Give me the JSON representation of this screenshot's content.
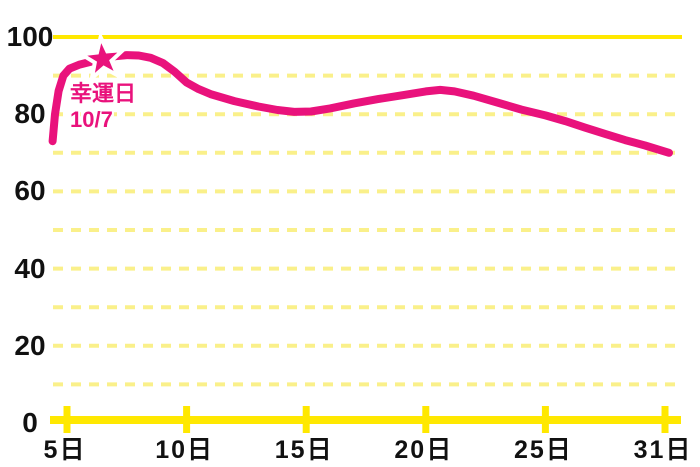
{
  "chart_data": {
    "type": "line",
    "title": "",
    "x_axis": {
      "unit_suffix": "日",
      "ticks": [
        {
          "day": 5,
          "label": "5日"
        },
        {
          "day": 10,
          "label": "10日"
        },
        {
          "day": 15,
          "label": "15日"
        },
        {
          "day": 20,
          "label": "20日"
        },
        {
          "day": 25,
          "label": "25日"
        },
        {
          "day": 31,
          "label": "31日"
        }
      ]
    },
    "y_axis": {
      "min": 0,
      "max": 100,
      "gridline_step": 10,
      "tick_labels": [
        {
          "value": 100,
          "label": "100"
        },
        {
          "value": 80,
          "label": "80"
        },
        {
          "value": 60,
          "label": "60"
        },
        {
          "value": 40,
          "label": "40"
        },
        {
          "value": 20,
          "label": "20"
        },
        {
          "value": 0,
          "label": "0"
        }
      ]
    },
    "grid": {
      "solid_levels": [
        100
      ],
      "dashed_levels": [
        90,
        80,
        70,
        60,
        50,
        40,
        30,
        20,
        10
      ],
      "legend": "none"
    },
    "series": [
      {
        "name": "daily-fortune-line",
        "points": [
          [
            4.4,
            73.0
          ],
          [
            4.5,
            80.0
          ],
          [
            4.65,
            86.0
          ],
          [
            4.85,
            90.0
          ],
          [
            5.1,
            91.8
          ],
          [
            5.5,
            92.8
          ],
          [
            6.0,
            93.6
          ],
          [
            6.5,
            94.3
          ],
          [
            7.0,
            95.0
          ],
          [
            7.5,
            95.3
          ],
          [
            8.0,
            95.2
          ],
          [
            8.5,
            94.6
          ],
          [
            9.0,
            93.3
          ],
          [
            9.5,
            91.0
          ],
          [
            10.0,
            88.2
          ],
          [
            10.5,
            86.5
          ],
          [
            11.0,
            85.2
          ],
          [
            12.0,
            83.4
          ],
          [
            13.0,
            82.0
          ],
          [
            13.8,
            81.1
          ],
          [
            14.5,
            80.6
          ],
          [
            15.2,
            80.7
          ],
          [
            16.0,
            81.5
          ],
          [
            17.0,
            82.8
          ],
          [
            18.0,
            83.9
          ],
          [
            19.0,
            84.9
          ],
          [
            20.0,
            85.9
          ],
          [
            20.6,
            86.3
          ],
          [
            21.2,
            85.9
          ],
          [
            22.0,
            84.8
          ],
          [
            23.0,
            83.0
          ],
          [
            24.0,
            81.2
          ],
          [
            25.0,
            79.7
          ],
          [
            26.0,
            78.2
          ],
          [
            27.0,
            76.5
          ],
          [
            28.0,
            74.9
          ],
          [
            29.0,
            73.3
          ],
          [
            30.0,
            71.9
          ],
          [
            31.2,
            70.0
          ]
        ]
      }
    ],
    "annotation": {
      "title": "幸運日",
      "date": "10/7",
      "star_day": 6.5,
      "star_value": 94.3
    },
    "colors": {
      "line": "#E9127C",
      "grid_solid": "#FFE800",
      "grid_dashed": "#FAF08A",
      "axis": "#FFE800",
      "labels": "#111111",
      "annotation": "#E9127C",
      "star_fill": "#E9127C",
      "star_outline": "#FFFFFF"
    }
  }
}
